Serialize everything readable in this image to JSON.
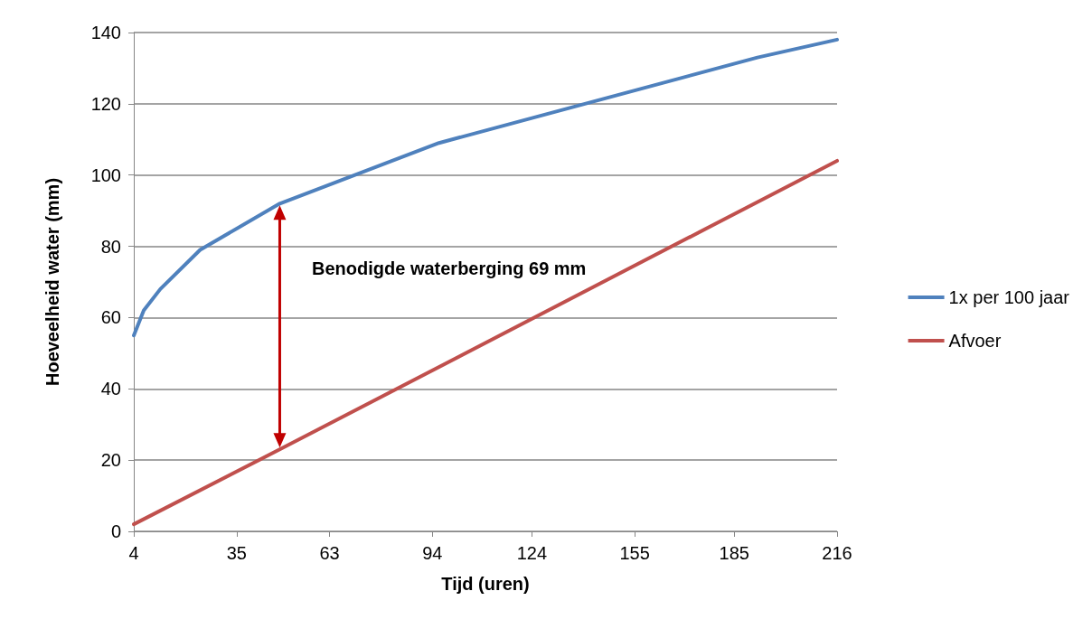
{
  "chart_data": {
    "type": "line",
    "xlabel": "Tijd (uren)",
    "ylabel": "Hoeveelheid water (mm)",
    "xlim": [
      4,
      216
    ],
    "xticks": [
      4,
      35,
      63,
      94,
      124,
      155,
      185,
      216
    ],
    "ylim": [
      0,
      140
    ],
    "yticks": [
      0,
      20,
      40,
      60,
      80,
      100,
      120,
      140
    ],
    "series": [
      {
        "name": "1x per 100 jaar",
        "color": "#4f81bd",
        "x": [
          4,
          7,
          12,
          24,
          48,
          96,
          140,
          192,
          216
        ],
        "values": [
          55,
          62,
          68,
          79,
          92,
          109,
          120,
          133,
          138
        ]
      },
      {
        "name": "Afvoer",
        "color": "#c0504d",
        "x": [
          4,
          48,
          216
        ],
        "values": [
          2,
          23,
          104
        ]
      }
    ],
    "annotations": [
      "Benodigde waterberging 69 mm"
    ],
    "grid": "y",
    "legend": "right",
    "marker": "none",
    "line_style": "solid"
  }
}
